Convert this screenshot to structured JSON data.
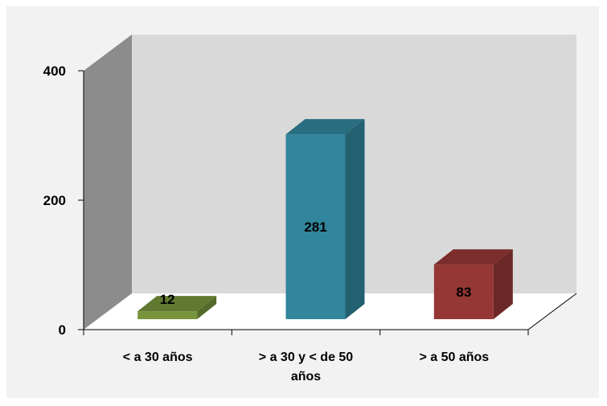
{
  "chart_data": {
    "type": "bar",
    "three_d": true,
    "categories": [
      "< a 30 años",
      "> a 30 y < de 50 años",
      "> a 50 años"
    ],
    "values": [
      12,
      281,
      83
    ],
    "data_labels": [
      "12",
      "281",
      "83"
    ],
    "colors": {
      "bars": [
        "#77933c",
        "#31859c",
        "#953735"
      ],
      "back_wall": "#d9d9d9",
      "side_wall": "#8c8c8c",
      "floor": "#ffffff",
      "frame_background": "#f2f2f2"
    },
    "ylim": [
      0,
      400
    ],
    "yticks": [
      "0",
      "200",
      "400"
    ],
    "title": "",
    "xlabel": "",
    "ylabel": "",
    "legend": "none",
    "grid": false
  }
}
